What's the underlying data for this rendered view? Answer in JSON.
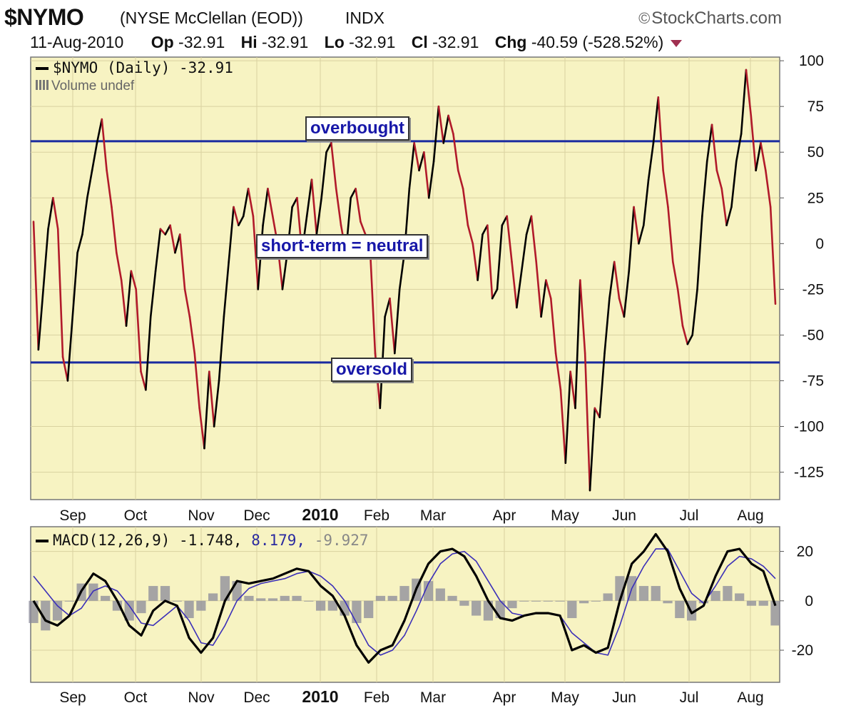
{
  "header": {
    "symbol": "$NYMO",
    "full_name": "(NYSE McClellan (EOD))",
    "exchange": "INDX",
    "brand": "StockCharts.com",
    "brand_icon": "copyright-icon"
  },
  "quote": {
    "date": "11-Aug-2010",
    "open_label": "Op",
    "open": "-32.91",
    "high_label": "Hi",
    "high": "-32.91",
    "low_label": "Lo",
    "low": "-32.91",
    "close_label": "Cl",
    "close": "-32.91",
    "change_label": "Chg",
    "change": "-40.59 (-528.52%)",
    "direction": "down",
    "direction_color": "#a03050"
  },
  "main_legend": {
    "series": "$NYMO (Daily)",
    "value": "-32.91",
    "volume": "Volume undef"
  },
  "macd_legend": {
    "label": "MACD(12,26,9)",
    "macd": "-1.748,",
    "signal": "8.179,",
    "histogram": "-9.927"
  },
  "annotations": {
    "overbought": "overbought",
    "neutral": "short-term = neutral",
    "oversold": "oversold"
  },
  "colors": {
    "panel_bg": "#f7f3c2",
    "price_up": "#000000",
    "price_down": "#b11a2a",
    "reference_line": "#1a2aa0",
    "macd_signal": "#3b2fb8",
    "histogram": "#8a8a9a"
  },
  "chart_data": [
    {
      "type": "line",
      "title": "$NYMO (Daily)",
      "y_ticks": [
        100,
        75,
        50,
        25,
        0,
        -25,
        -50,
        -75,
        -100,
        -125
      ],
      "ylim": [
        -140,
        102
      ],
      "x_ticks": [
        "Sep",
        "Oct",
        "Nov",
        "Dec",
        "2010",
        "Feb",
        "Mar",
        "Apr",
        "May",
        "Jun",
        "Jul",
        "Aug"
      ],
      "bold_ticks": [
        "2010"
      ],
      "reference_lines": [
        {
          "label": "overbought",
          "y": 56
        },
        {
          "label": "oversold",
          "y": -65
        }
      ],
      "series": [
        {
          "name": "$NYMO",
          "values": [
            12,
            -58,
            -25,
            8,
            25,
            8,
            -62,
            -75,
            -40,
            -5,
            5,
            25,
            40,
            55,
            68,
            40,
            20,
            -5,
            -20,
            -45,
            -15,
            -25,
            -70,
            -80,
            -40,
            -15,
            8,
            5,
            10,
            -5,
            5,
            -25,
            -40,
            -60,
            -90,
            -112,
            -70,
            -100,
            -75,
            -40,
            -10,
            20,
            10,
            15,
            30,
            15,
            -25,
            10,
            30,
            15,
            0,
            -25,
            -5,
            20,
            25,
            -5,
            15,
            35,
            5,
            25,
            50,
            55,
            30,
            10,
            -5,
            25,
            30,
            12,
            5,
            -5,
            -60,
            -90,
            -40,
            -30,
            -60,
            -25,
            -5,
            30,
            55,
            40,
            50,
            25,
            45,
            75,
            55,
            70,
            60,
            40,
            30,
            10,
            0,
            -20,
            5,
            10,
            -30,
            -25,
            10,
            15,
            -10,
            -35,
            -15,
            5,
            15,
            -10,
            -40,
            -20,
            -30,
            -60,
            -80,
            -120,
            -70,
            -90,
            -20,
            -60,
            -135,
            -90,
            -95,
            -60,
            -30,
            -10,
            -30,
            -40,
            -15,
            20,
            0,
            10,
            35,
            55,
            80,
            40,
            20,
            -10,
            -25,
            -45,
            -55,
            -50,
            -25,
            15,
            45,
            65,
            40,
            30,
            10,
            20,
            45,
            60,
            95,
            70,
            40,
            55,
            40,
            20,
            -33
          ]
        }
      ]
    },
    {
      "type": "line",
      "title": "MACD(12,26,9)",
      "y_ticks": [
        20,
        0,
        -20
      ],
      "ylim": [
        -33,
        30
      ],
      "x_ticks": [
        "Sep",
        "Oct",
        "Nov",
        "Dec",
        "2010",
        "Feb",
        "Mar",
        "Apr",
        "May",
        "Jun",
        "Jul",
        "Aug"
      ],
      "bold_ticks": [
        "2010"
      ],
      "series": [
        {
          "name": "MACD",
          "values": [
            0,
            -8,
            -10,
            -6,
            4,
            11,
            8,
            0,
            -10,
            -14,
            -4,
            0,
            -2,
            -15,
            -21,
            -15,
            0,
            8,
            7,
            8,
            9,
            11,
            13,
            12,
            6,
            2,
            -6,
            -18,
            -25,
            -20,
            -18,
            -8,
            5,
            15,
            20,
            21,
            18,
            10,
            0,
            -7,
            -8,
            -6,
            -5,
            -5,
            -6,
            -20,
            -18,
            -21,
            -19,
            0,
            15,
            20,
            27,
            20,
            5,
            -5,
            -2,
            10,
            20,
            21,
            15,
            12,
            -2
          ]
        },
        {
          "name": "signal",
          "values": [
            10,
            4,
            -2,
            -6,
            -3,
            4,
            6,
            4,
            -2,
            -9,
            -10,
            -6,
            -2,
            -8,
            -17,
            -18,
            -10,
            0,
            5,
            7,
            8,
            9,
            11,
            12,
            10,
            6,
            0,
            -9,
            -18,
            -22,
            -20,
            -14,
            -4,
            7,
            15,
            19,
            20,
            16,
            8,
            0,
            -5,
            -6,
            -5,
            -5,
            -6,
            -13,
            -17,
            -21,
            -22,
            -10,
            5,
            14,
            21,
            21,
            12,
            3,
            -1,
            6,
            14,
            18,
            17,
            14,
            9
          ]
        },
        {
          "name": "histogram",
          "values": [
            -9,
            -12,
            -8,
            0,
            7,
            7,
            2,
            -4,
            -8,
            -5,
            6,
            6,
            0,
            -7,
            -4,
            3,
            10,
            8,
            2,
            1,
            1,
            2,
            2,
            0,
            -4,
            -4,
            -6,
            -9,
            -7,
            2,
            2,
            6,
            9,
            8,
            5,
            2,
            -2,
            -6,
            -8,
            -7,
            -3,
            0,
            0,
            0,
            0,
            -7,
            -1,
            0,
            3,
            10,
            10,
            6,
            6,
            -1,
            -7,
            -8,
            -1,
            4,
            6,
            3,
            -2,
            -2,
            -10
          ]
        }
      ]
    }
  ]
}
